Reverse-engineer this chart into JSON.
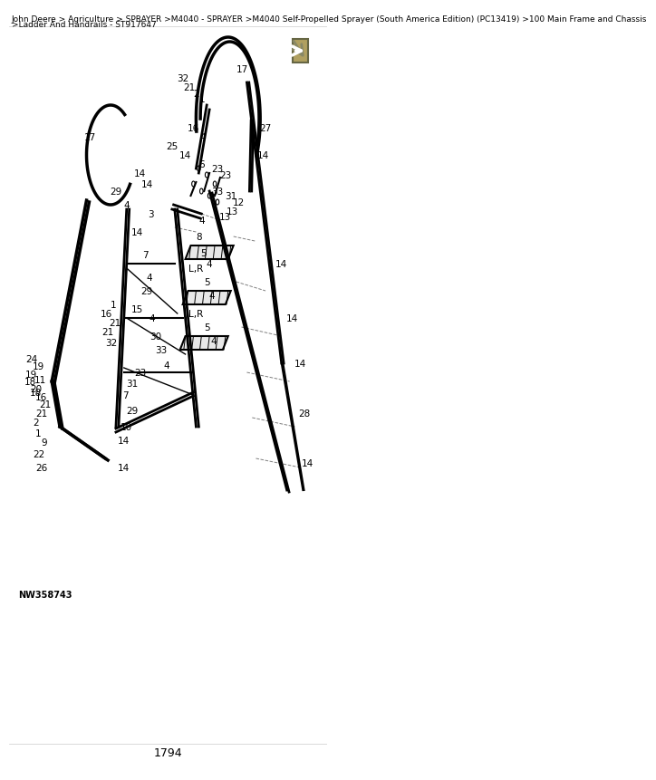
{
  "title_line1": "John Deere > Agriculture > SPRAYER >M4040 - SPRAYER >M4040 Self-Propelled Sprayer (South America Edition) (PC13419) >100 Main Frame and Chassis",
  "title_line2": ">Ladder And Handrails - ST917647",
  "page_number": "1794",
  "part_number": "NW358743",
  "background_color": "#ffffff",
  "line_color": "#000000",
  "text_color": "#000000",
  "title_fontsize": 6.5,
  "label_fontsize": 7.5,
  "page_fontsize": 9
}
